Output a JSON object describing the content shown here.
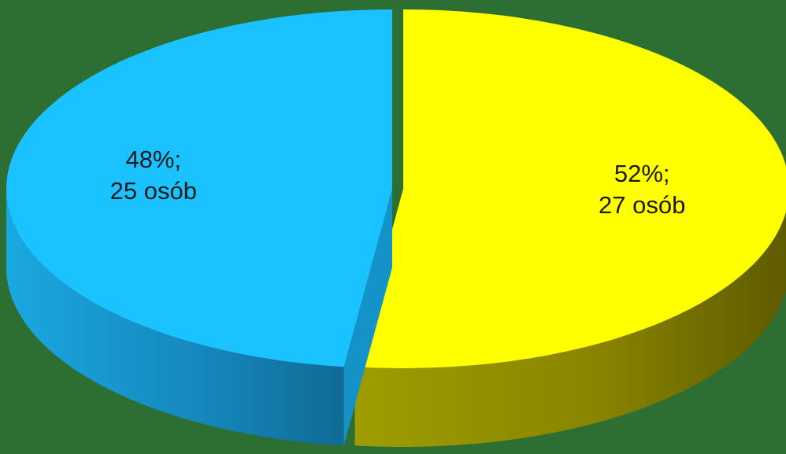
{
  "chart_data": {
    "type": "pie",
    "style": "3d-exploded",
    "background_color": "#2d6e33",
    "legend": "none",
    "slices": [
      {
        "value": 52,
        "count": 27,
        "color": "#ffff00",
        "side_color": "#8c8c00",
        "label_line1": "52%;",
        "label_line2": "27 osób"
      },
      {
        "value": 48,
        "count": 25,
        "color": "#1ac3ff",
        "side_color": "#1684b3",
        "label_line1": "48%;",
        "label_line2": "25 osób"
      }
    ]
  }
}
